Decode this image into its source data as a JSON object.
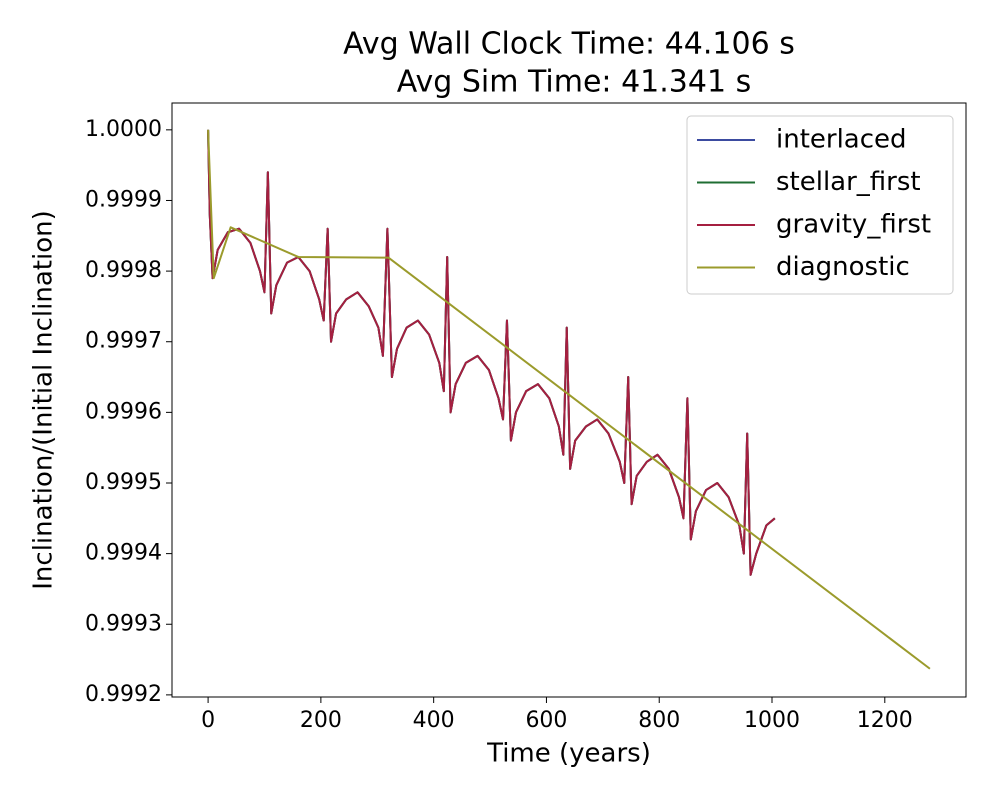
{
  "chart_data": {
    "type": "line",
    "title": [
      "Avg Wall Clock Time: 44.106 s",
      "Avg Sim Time: 41.341 s"
    ],
    "xlabel": "Time (years)",
    "ylabel": "Inclination/(Initial Inclination)",
    "xlim": [
      -64,
      1344
    ],
    "ylim": [
      0.999197,
      1.000038
    ],
    "xticks": [
      0,
      200,
      400,
      600,
      800,
      1000,
      1200
    ],
    "yticks": [
      {
        "value": 0.9992,
        "label": "0.9992"
      },
      {
        "value": 0.9993,
        "label": "0.9993"
      },
      {
        "value": 0.9994,
        "label": "0.9994"
      },
      {
        "value": 0.9995,
        "label": "0.9995"
      },
      {
        "value": 0.9996,
        "label": "0.9996"
      },
      {
        "value": 0.9997,
        "label": "0.9997"
      },
      {
        "value": 0.9998,
        "label": "0.9998"
      },
      {
        "value": 0.9999,
        "label": "0.9999"
      },
      {
        "value": 1.0,
        "label": "1.0000"
      }
    ],
    "legend": "upper right",
    "series": [
      {
        "name": "interlaced",
        "color": "#3b4ba0",
        "x": [
          0,
          3,
          8,
          17,
          35,
          55,
          75,
          92,
          100,
          106,
          112,
          121,
          140,
          160,
          180,
          197,
          205,
          212,
          218,
          227,
          245,
          265,
          285,
          302,
          310,
          318,
          326,
          335,
          352,
          372,
          392,
          410,
          418,
          424,
          430,
          439,
          457,
          478,
          498,
          515,
          523,
          530,
          537,
          546,
          564,
          585,
          605,
          622,
          630,
          636,
          642,
          651,
          670,
          690,
          710,
          730,
          738,
          745,
          751,
          760,
          778,
          797,
          817,
          835,
          843,
          850,
          856,
          865,
          883,
          903,
          923,
          942,
          950,
          956,
          962,
          972,
          990,
          1005
        ],
        "values": [
          1.0,
          0.99988,
          0.99979,
          0.99983,
          0.999855,
          0.99986,
          0.99984,
          0.9998,
          0.99977,
          0.99994,
          0.99974,
          0.99978,
          0.999812,
          0.99982,
          0.9998,
          0.99976,
          0.99973,
          0.99986,
          0.9997,
          0.99974,
          0.99976,
          0.99977,
          0.99975,
          0.99972,
          0.99968,
          0.99986,
          0.99965,
          0.99969,
          0.99972,
          0.99973,
          0.99971,
          0.99967,
          0.99963,
          0.99982,
          0.9996,
          0.99964,
          0.99967,
          0.99968,
          0.99966,
          0.99962,
          0.99959,
          0.99973,
          0.99956,
          0.9996,
          0.99963,
          0.99964,
          0.99962,
          0.99958,
          0.99954,
          0.99972,
          0.99952,
          0.99956,
          0.99958,
          0.99959,
          0.99957,
          0.99953,
          0.9995,
          0.99965,
          0.99947,
          0.99951,
          0.99953,
          0.99954,
          0.99952,
          0.99948,
          0.99945,
          0.99962,
          0.99942,
          0.99946,
          0.99949,
          0.9995,
          0.99948,
          0.99944,
          0.9994,
          0.99957,
          0.99937,
          0.9994,
          0.99944,
          0.99945
        ]
      },
      {
        "name": "stellar_first",
        "color": "#1f6e33",
        "x": [
          0,
          3,
          8,
          17,
          35,
          55,
          75,
          92,
          100,
          106,
          112,
          121,
          140,
          160,
          180,
          197,
          205,
          212,
          218,
          227,
          245,
          265,
          285,
          302,
          310,
          318,
          326,
          335,
          352,
          372,
          392,
          410,
          418,
          424,
          430,
          439,
          457,
          478,
          498,
          515,
          523,
          530,
          537,
          546,
          564,
          585,
          605,
          622,
          630,
          636,
          642,
          651,
          670,
          690,
          710,
          730,
          738,
          745,
          751,
          760,
          778,
          797,
          817,
          835,
          843,
          850,
          856,
          865,
          883,
          903,
          923,
          942,
          950,
          956,
          962,
          972,
          990,
          1005
        ],
        "values": [
          1.0,
          0.99988,
          0.99979,
          0.99983,
          0.999855,
          0.99986,
          0.99984,
          0.9998,
          0.99977,
          0.99994,
          0.99974,
          0.99978,
          0.999812,
          0.99982,
          0.9998,
          0.99976,
          0.99973,
          0.99986,
          0.9997,
          0.99974,
          0.99976,
          0.99977,
          0.99975,
          0.99972,
          0.99968,
          0.99986,
          0.99965,
          0.99969,
          0.99972,
          0.99973,
          0.99971,
          0.99967,
          0.99963,
          0.99982,
          0.9996,
          0.99964,
          0.99967,
          0.99968,
          0.99966,
          0.99962,
          0.99959,
          0.99973,
          0.99956,
          0.9996,
          0.99963,
          0.99964,
          0.99962,
          0.99958,
          0.99954,
          0.99972,
          0.99952,
          0.99956,
          0.99958,
          0.99959,
          0.99957,
          0.99953,
          0.9995,
          0.99965,
          0.99947,
          0.99951,
          0.99953,
          0.99954,
          0.99952,
          0.99948,
          0.99945,
          0.99962,
          0.99942,
          0.99946,
          0.99949,
          0.9995,
          0.99948,
          0.99944,
          0.9994,
          0.99957,
          0.99937,
          0.9994,
          0.99944,
          0.99945
        ]
      },
      {
        "name": "gravity_first",
        "color": "#a51f40",
        "x": [
          0,
          3,
          8,
          17,
          35,
          55,
          75,
          92,
          100,
          106,
          112,
          121,
          140,
          160,
          180,
          197,
          205,
          212,
          218,
          227,
          245,
          265,
          285,
          302,
          310,
          318,
          326,
          335,
          352,
          372,
          392,
          410,
          418,
          424,
          430,
          439,
          457,
          478,
          498,
          515,
          523,
          530,
          537,
          546,
          564,
          585,
          605,
          622,
          630,
          636,
          642,
          651,
          670,
          690,
          710,
          730,
          738,
          745,
          751,
          760,
          778,
          797,
          817,
          835,
          843,
          850,
          856,
          865,
          883,
          903,
          923,
          942,
          950,
          956,
          962,
          972,
          990,
          1005
        ],
        "values": [
          1.0,
          0.99988,
          0.99979,
          0.99983,
          0.999855,
          0.99986,
          0.99984,
          0.9998,
          0.99977,
          0.99994,
          0.99974,
          0.99978,
          0.999812,
          0.99982,
          0.9998,
          0.99976,
          0.99973,
          0.99986,
          0.9997,
          0.99974,
          0.99976,
          0.99977,
          0.99975,
          0.99972,
          0.99968,
          0.99986,
          0.99965,
          0.99969,
          0.99972,
          0.99973,
          0.99971,
          0.99967,
          0.99963,
          0.99982,
          0.9996,
          0.99964,
          0.99967,
          0.99968,
          0.99966,
          0.99962,
          0.99959,
          0.99973,
          0.99956,
          0.9996,
          0.99963,
          0.99964,
          0.99962,
          0.99958,
          0.99954,
          0.99972,
          0.99952,
          0.99956,
          0.99958,
          0.99959,
          0.99957,
          0.99953,
          0.9995,
          0.99965,
          0.99947,
          0.99951,
          0.99953,
          0.99954,
          0.99952,
          0.99948,
          0.99945,
          0.99962,
          0.99942,
          0.99946,
          0.99949,
          0.9995,
          0.99948,
          0.99944,
          0.9994,
          0.99957,
          0.99937,
          0.9994,
          0.99944,
          0.99945
        ]
      },
      {
        "name": "diagnostic",
        "color": "#9b9b2c",
        "x": [
          0,
          10,
          40,
          160,
          320,
          1280
        ],
        "values": [
          1.0,
          0.99979,
          0.999862,
          0.99982,
          0.999819,
          0.999237
        ]
      }
    ]
  }
}
